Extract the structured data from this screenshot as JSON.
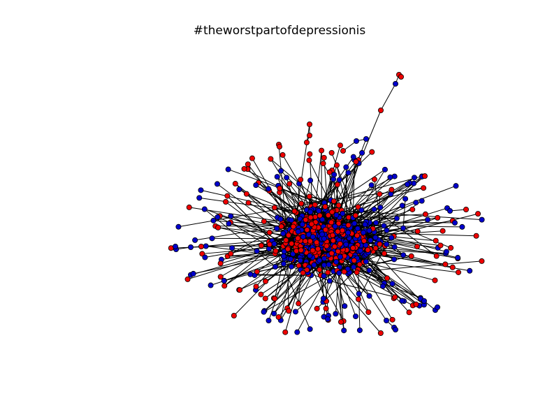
{
  "figure": {
    "title": "#theworstpartofdepressionis"
  },
  "graph": {
    "node_colors": {
      "red": "#ee0000",
      "blue": "#0000cc"
    },
    "edge_color": "#000000",
    "node_outline": "#000000"
  }
}
